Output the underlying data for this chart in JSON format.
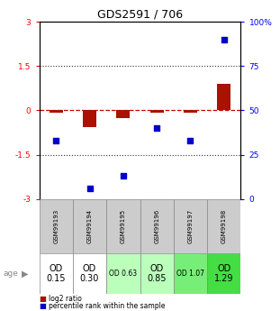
{
  "title": "GDS2591 / 706",
  "samples": [
    "GSM99193",
    "GSM99194",
    "GSM99195",
    "GSM99196",
    "GSM99197",
    "GSM99198"
  ],
  "log2_ratio": [
    -0.07,
    -0.55,
    -0.25,
    -0.08,
    -0.07,
    0.9
  ],
  "percentile_rank": [
    33,
    6,
    13,
    40,
    33,
    90
  ],
  "od_labels": [
    "OD\n0.15",
    "OD\n0.30",
    "OD 0.63",
    "OD\n0.85",
    "OD 1.07",
    "OD\n1.29"
  ],
  "od_bg_colors": [
    "#ffffff",
    "#ffffff",
    "#bbffbb",
    "#bbffbb",
    "#77ee77",
    "#44dd44"
  ],
  "od_fontsize": [
    7,
    7,
    5.5,
    7,
    5.5,
    7
  ],
  "ylim_left": [
    -3,
    3
  ],
  "ylim_right": [
    0,
    100
  ],
  "yticks_left": [
    -3,
    -1.5,
    0,
    1.5,
    3
  ],
  "yticks_right": [
    0,
    25,
    50,
    75,
    100
  ],
  "ytick_labels_left": [
    "-3",
    "-1.5",
    "0",
    "1.5",
    "3"
  ],
  "ytick_labels_right": [
    "0",
    "25",
    "50",
    "75",
    "100%"
  ],
  "bar_color": "#aa1100",
  "dot_color": "#0000cc",
  "zero_line_color": "#cc0000",
  "dotted_line_color": "#333333",
  "bg_plot": "#ffffff",
  "legend_log2": "log2 ratio",
  "legend_pct": "percentile rank within the sample",
  "age_label": "age",
  "row_header_bg": "#cccccc"
}
